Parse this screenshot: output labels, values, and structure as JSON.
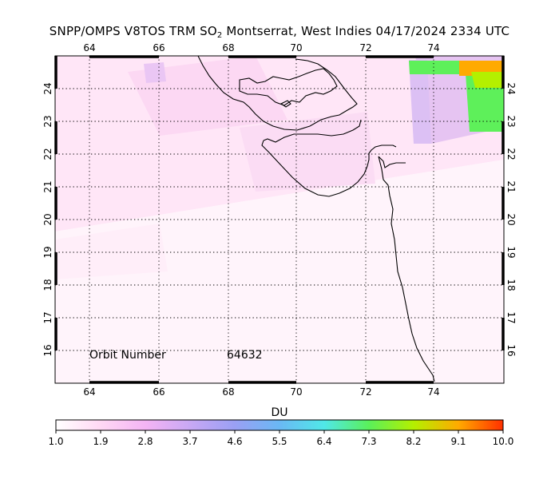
{
  "title": {
    "product": "SNPP/OMPS V8TOS TRM SO",
    "product_subscript": "2",
    "location": "Montserrat, West Indies",
    "datetime": "04/17/2024 2334 UTC"
  },
  "map": {
    "lon_range": [
      63,
      76
    ],
    "lat_range": [
      15,
      25
    ],
    "lon_ticks": [
      "64",
      "66",
      "68",
      "70",
      "72",
      "74"
    ],
    "lat_ticks": [
      "16",
      "17",
      "18",
      "19",
      "20",
      "21",
      "22",
      "23",
      "24"
    ],
    "grid": "dotted"
  },
  "orbit": {
    "label": "Orbit Number",
    "value": "64632"
  },
  "colorbar": {
    "units": "DU",
    "tick_labels": [
      "1.0",
      "1.9",
      "2.8",
      "3.7",
      "4.6",
      "5.5",
      "6.4",
      "7.3",
      "8.2",
      "9.1",
      "10.0"
    ],
    "range": [
      1.0,
      10.0
    ],
    "colors": [
      "#ffffff",
      "#ffd8f4",
      "#f4b4f4",
      "#c8a8f4",
      "#9aa0f4",
      "#6ab8f4",
      "#50e8e8",
      "#5af05a",
      "#b4f000",
      "#ffaa00",
      "#ff3000"
    ]
  }
}
